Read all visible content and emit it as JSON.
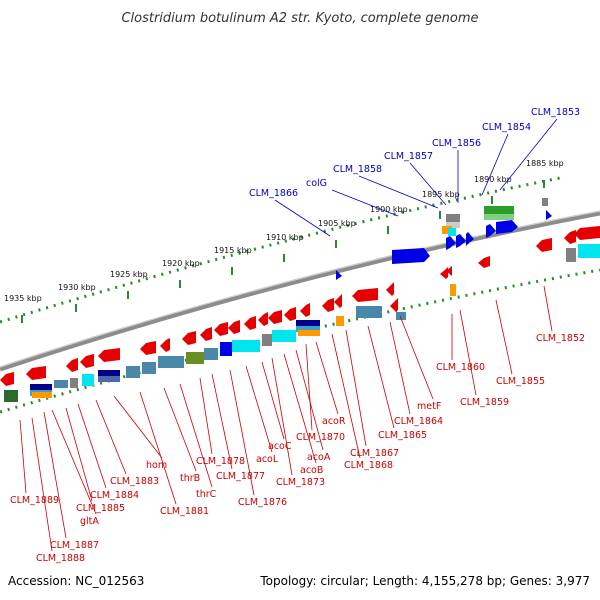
{
  "title": "Clostridium botulinum A2 str. Kyoto, complete genome",
  "footer": {
    "accession": "Accession: NC_012563",
    "topology": "Topology: circular; Length: 4,155,278 bp; Genes: 3,977"
  },
  "colors": {
    "forward_gene": "#0000e6",
    "reverse_gene": "#e60000",
    "backbone": "#7f7f7f",
    "tick": "#2a8a2a",
    "label_up": "#0000cc",
    "label_down": "#cc0000"
  },
  "scale_ticks": [
    "1935 kbp",
    "1930 kbp",
    "1925 kbp",
    "1920 kbp",
    "1915 kbp",
    "1910 kbp",
    "1905 kbp",
    "1900 kbp",
    "1895 kbp",
    "1890 kbp",
    "1885 kbp"
  ],
  "upper_labels": [
    "CLM_1866",
    "colG",
    "CLM_1858",
    "CLM_1857",
    "CLM_1856",
    "CLM_1854",
    "CLM_1853"
  ],
  "lower_labels": [
    "CLM_1889",
    "CLM_1888",
    "CLM_1887",
    "gltA",
    "CLM_1885",
    "CLM_1884",
    "CLM_1883",
    "hom",
    "CLM_1881",
    "thrB",
    "thrC",
    "CLM_1878",
    "CLM_1877",
    "CLM_1876",
    "acoL",
    "acoC",
    "CLM_1873",
    "acoB",
    "acoA",
    "CLM_1870",
    "acoR",
    "CLM_1868",
    "CLM_1867",
    "CLM_1865",
    "CLM_1864",
    "metF",
    "CLM_1860",
    "CLM_1859",
    "CLM_1855",
    "CLM_1852"
  ]
}
